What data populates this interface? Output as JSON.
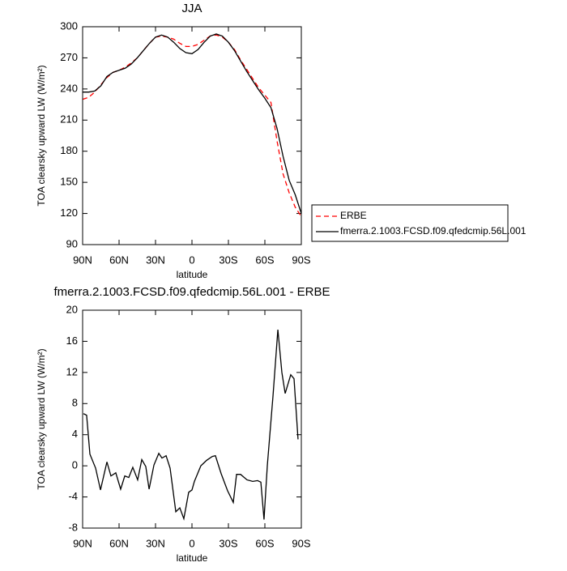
{
  "chart_data": [
    {
      "type": "line",
      "title": "JJA",
      "xlabel": "latitude",
      "ylabel": "TOA clearsky upward LW (W/m²)",
      "x": [
        90,
        85,
        80,
        75,
        70,
        65,
        60,
        55,
        50,
        45,
        40,
        35,
        30,
        25,
        20,
        15,
        10,
        5,
        0,
        -5,
        -10,
        -15,
        -20,
        -25,
        -30,
        -35,
        -40,
        -45,
        -50,
        -55,
        -60,
        -65,
        -70,
        -75,
        -80,
        -85,
        -90
      ],
      "series": [
        {
          "name": "ERBE",
          "color": "#ff0000",
          "linestyle": "dashed",
          "values": [
            230,
            232,
            237,
            244,
            251,
            256,
            258,
            261,
            265,
            270,
            277,
            284,
            290,
            291,
            290,
            288,
            284,
            281,
            281,
            283,
            287,
            291,
            292,
            290,
            285,
            278,
            268,
            259,
            250,
            241,
            234,
            227,
            190,
            158,
            140,
            126,
            117
          ]
        },
        {
          "name": "fmerra.2.1003.FCSD.f09.qfedcmip.56L.001",
          "color": "#000000",
          "linestyle": "solid",
          "values": [
            237,
            237,
            238,
            243,
            252,
            256,
            258,
            260,
            264,
            270,
            277,
            284,
            290,
            292,
            290,
            285,
            279,
            275,
            274,
            278,
            285,
            291,
            293,
            291,
            285,
            277,
            267,
            257,
            248,
            239,
            231,
            222,
            202,
            175,
            152,
            138,
            120
          ]
        }
      ],
      "xlim": [
        90,
        -90
      ],
      "xticks": [
        {
          "value": 90,
          "label": "90N"
        },
        {
          "value": 60,
          "label": "60N"
        },
        {
          "value": 30,
          "label": "30N"
        },
        0,
        {
          "value": -30,
          "label": "30S"
        },
        {
          "value": -60,
          "label": "60S"
        },
        {
          "value": -90,
          "label": "90S"
        }
      ],
      "ylim": [
        90,
        300
      ],
      "yticks": [
        90,
        120,
        150,
        180,
        210,
        240,
        270,
        300
      ],
      "legend": "right"
    },
    {
      "type": "line",
      "title": "fmerra.2.1003.FCSD.f09.qfedcmip.56L.001 - ERBE",
      "xlabel": "latitude",
      "ylabel": "TOA clearsky upward LW (W/m²)",
      "x": [
        89.3,
        86.7,
        84,
        79.3,
        75.3,
        70,
        66.7,
        62.7,
        58.7,
        55.3,
        52,
        48.7,
        44.7,
        41.3,
        38,
        35.3,
        31.3,
        27.3,
        24.7,
        21.3,
        18,
        13.3,
        10,
        6.7,
        2.7,
        0,
        -2,
        -7.3,
        -12,
        -16.7,
        -19.3,
        -24,
        -29.3,
        -34,
        -36.7,
        -40,
        -45.3,
        -50,
        -54,
        -56.7,
        -59.3,
        -62,
        -66.7,
        -70.7,
        -74,
        -76.7,
        -81.3,
        -84,
        -87.3
      ],
      "values": [
        6.7,
        6.5,
        1.5,
        -0.3,
        -3.1,
        0.5,
        -1.3,
        -0.9,
        -3.0,
        -1.3,
        -1.5,
        -0.2,
        -1.8,
        0.8,
        -0.1,
        -3.0,
        0.1,
        1.6,
        1.0,
        1.3,
        -0.3,
        -5.9,
        -5.4,
        -6.8,
        -3.4,
        -3.1,
        -2.0,
        0.0,
        0.7,
        1.2,
        1.3,
        -1.0,
        -3.2,
        -4.7,
        -1.1,
        -1.1,
        -1.8,
        -2.0,
        -1.9,
        -2.1,
        -6.9,
        0.0,
        9.0,
        17.5,
        12.0,
        9.3,
        11.7,
        11.2,
        3.4
      ],
      "color": "#000000",
      "xlim": [
        90,
        -90
      ],
      "xticks": [
        {
          "value": 90,
          "label": "90N"
        },
        {
          "value": 60,
          "label": "60N"
        },
        {
          "value": 30,
          "label": "30N"
        },
        0,
        {
          "value": -30,
          "label": "30S"
        },
        {
          "value": -60,
          "label": "60S"
        },
        {
          "value": -90,
          "label": "90S"
        }
      ],
      "ylim": [
        -8,
        20
      ],
      "yticks": [
        -8,
        -4,
        0,
        4,
        8,
        12,
        16,
        20
      ]
    }
  ]
}
